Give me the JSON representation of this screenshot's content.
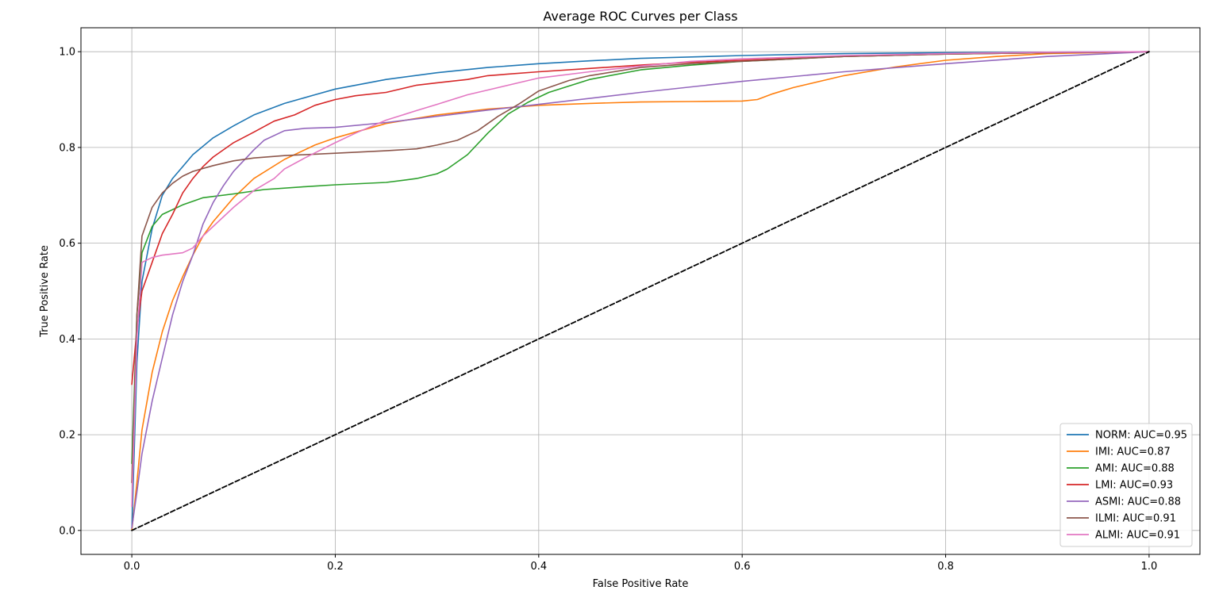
{
  "chart_data": {
    "type": "line",
    "title": "Average ROC Curves per Class",
    "xlabel": "False Positive Rate",
    "ylabel": "True Positive Rate",
    "xlim": [
      -0.05,
      1.05
    ],
    "ylim": [
      -0.05,
      1.05
    ],
    "xticks": [
      0.0,
      0.2,
      0.4,
      0.6,
      0.8,
      1.0
    ],
    "yticks": [
      0.0,
      0.2,
      0.4,
      0.6,
      0.8,
      1.0
    ],
    "xtick_labels": [
      "0.0",
      "0.2",
      "0.4",
      "0.6",
      "0.8",
      "1.0"
    ],
    "ytick_labels": [
      "0.0",
      "0.2",
      "0.4",
      "0.6",
      "0.8",
      "1.0"
    ],
    "grid": true,
    "legend_position": "lower-right",
    "series": [
      {
        "name": "NORM: AUC=0.95",
        "color": "#1f77b4",
        "points": [
          [
            0,
            0
          ],
          [
            0.005,
            0.35
          ],
          [
            0.01,
            0.52
          ],
          [
            0.02,
            0.63
          ],
          [
            0.03,
            0.7
          ],
          [
            0.04,
            0.735
          ],
          [
            0.05,
            0.76
          ],
          [
            0.06,
            0.785
          ],
          [
            0.08,
            0.82
          ],
          [
            0.1,
            0.845
          ],
          [
            0.12,
            0.868
          ],
          [
            0.15,
            0.892
          ],
          [
            0.18,
            0.91
          ],
          [
            0.2,
            0.922
          ],
          [
            0.25,
            0.942
          ],
          [
            0.3,
            0.956
          ],
          [
            0.35,
            0.967
          ],
          [
            0.4,
            0.975
          ],
          [
            0.45,
            0.981
          ],
          [
            0.5,
            0.986
          ],
          [
            0.6,
            0.992
          ],
          [
            0.7,
            0.996
          ],
          [
            0.8,
            0.998
          ],
          [
            0.9,
            0.999
          ],
          [
            1.0,
            1.0
          ]
        ]
      },
      {
        "name": "IMI: AUC=0.87",
        "color": "#ff7f0e",
        "points": [
          [
            0,
            0
          ],
          [
            0.005,
            0.1
          ],
          [
            0.01,
            0.21
          ],
          [
            0.02,
            0.33
          ],
          [
            0.03,
            0.415
          ],
          [
            0.04,
            0.48
          ],
          [
            0.05,
            0.53
          ],
          [
            0.06,
            0.575
          ],
          [
            0.07,
            0.615
          ],
          [
            0.08,
            0.645
          ],
          [
            0.1,
            0.695
          ],
          [
            0.12,
            0.735
          ],
          [
            0.15,
            0.775
          ],
          [
            0.18,
            0.805
          ],
          [
            0.2,
            0.82
          ],
          [
            0.25,
            0.85
          ],
          [
            0.3,
            0.868
          ],
          [
            0.35,
            0.88
          ],
          [
            0.4,
            0.888
          ],
          [
            0.45,
            0.892
          ],
          [
            0.5,
            0.895
          ],
          [
            0.55,
            0.896
          ],
          [
            0.6,
            0.897
          ],
          [
            0.615,
            0.9
          ],
          [
            0.63,
            0.912
          ],
          [
            0.65,
            0.925
          ],
          [
            0.7,
            0.95
          ],
          [
            0.75,
            0.968
          ],
          [
            0.8,
            0.982
          ],
          [
            0.85,
            0.99
          ],
          [
            0.9,
            0.996
          ],
          [
            1.0,
            1.0
          ]
        ]
      },
      {
        "name": "AMI: AUC=0.88",
        "color": "#2ca02c",
        "points": [
          [
            0,
            0.14
          ],
          [
            0.005,
            0.45
          ],
          [
            0.01,
            0.58
          ],
          [
            0.02,
            0.635
          ],
          [
            0.03,
            0.66
          ],
          [
            0.05,
            0.68
          ],
          [
            0.07,
            0.695
          ],
          [
            0.1,
            0.703
          ],
          [
            0.13,
            0.712
          ],
          [
            0.17,
            0.718
          ],
          [
            0.2,
            0.722
          ],
          [
            0.25,
            0.727
          ],
          [
            0.28,
            0.735
          ],
          [
            0.3,
            0.745
          ],
          [
            0.31,
            0.755
          ],
          [
            0.33,
            0.785
          ],
          [
            0.35,
            0.83
          ],
          [
            0.37,
            0.87
          ],
          [
            0.39,
            0.895
          ],
          [
            0.41,
            0.915
          ],
          [
            0.45,
            0.942
          ],
          [
            0.5,
            0.962
          ],
          [
            0.55,
            0.972
          ],
          [
            0.6,
            0.98
          ],
          [
            0.7,
            0.99
          ],
          [
            0.8,
            0.995
          ],
          [
            0.9,
            0.998
          ],
          [
            1.0,
            1.0
          ]
        ]
      },
      {
        "name": "LMI: AUC=0.93",
        "color": "#d62728",
        "points": [
          [
            0,
            0.305
          ],
          [
            0.005,
            0.42
          ],
          [
            0.01,
            0.5
          ],
          [
            0.02,
            0.56
          ],
          [
            0.03,
            0.62
          ],
          [
            0.04,
            0.66
          ],
          [
            0.05,
            0.705
          ],
          [
            0.06,
            0.735
          ],
          [
            0.07,
            0.76
          ],
          [
            0.08,
            0.78
          ],
          [
            0.1,
            0.81
          ],
          [
            0.12,
            0.832
          ],
          [
            0.14,
            0.855
          ],
          [
            0.16,
            0.868
          ],
          [
            0.18,
            0.888
          ],
          [
            0.2,
            0.9
          ],
          [
            0.22,
            0.908
          ],
          [
            0.25,
            0.915
          ],
          [
            0.28,
            0.93
          ],
          [
            0.3,
            0.935
          ],
          [
            0.33,
            0.942
          ],
          [
            0.35,
            0.95
          ],
          [
            0.4,
            0.958
          ],
          [
            0.45,
            0.965
          ],
          [
            0.5,
            0.972
          ],
          [
            0.55,
            0.978
          ],
          [
            0.6,
            0.982
          ],
          [
            0.7,
            0.99
          ],
          [
            0.8,
            0.995
          ],
          [
            0.9,
            0.998
          ],
          [
            1.0,
            1.0
          ]
        ]
      },
      {
        "name": "ASMI: AUC=0.88",
        "color": "#9467bd",
        "points": [
          [
            0,
            0.005
          ],
          [
            0.005,
            0.08
          ],
          [
            0.01,
            0.16
          ],
          [
            0.02,
            0.27
          ],
          [
            0.03,
            0.36
          ],
          [
            0.04,
            0.45
          ],
          [
            0.05,
            0.52
          ],
          [
            0.06,
            0.575
          ],
          [
            0.07,
            0.64
          ],
          [
            0.08,
            0.685
          ],
          [
            0.09,
            0.72
          ],
          [
            0.1,
            0.75
          ],
          [
            0.12,
            0.795
          ],
          [
            0.13,
            0.815
          ],
          [
            0.15,
            0.835
          ],
          [
            0.17,
            0.84
          ],
          [
            0.2,
            0.842
          ],
          [
            0.25,
            0.852
          ],
          [
            0.3,
            0.865
          ],
          [
            0.35,
            0.878
          ],
          [
            0.4,
            0.89
          ],
          [
            0.5,
            0.915
          ],
          [
            0.6,
            0.938
          ],
          [
            0.7,
            0.958
          ],
          [
            0.8,
            0.975
          ],
          [
            0.9,
            0.99
          ],
          [
            1.0,
            1.0
          ]
        ]
      },
      {
        "name": "ILMI: AUC=0.91",
        "color": "#8c564b",
        "points": [
          [
            0,
            0.1
          ],
          [
            0.005,
            0.45
          ],
          [
            0.01,
            0.615
          ],
          [
            0.02,
            0.675
          ],
          [
            0.03,
            0.705
          ],
          [
            0.04,
            0.725
          ],
          [
            0.05,
            0.74
          ],
          [
            0.06,
            0.75
          ],
          [
            0.08,
            0.762
          ],
          [
            0.1,
            0.772
          ],
          [
            0.12,
            0.778
          ],
          [
            0.15,
            0.783
          ],
          [
            0.2,
            0.788
          ],
          [
            0.25,
            0.793
          ],
          [
            0.28,
            0.797
          ],
          [
            0.3,
            0.805
          ],
          [
            0.32,
            0.815
          ],
          [
            0.34,
            0.835
          ],
          [
            0.36,
            0.865
          ],
          [
            0.38,
            0.89
          ],
          [
            0.4,
            0.918
          ],
          [
            0.43,
            0.94
          ],
          [
            0.45,
            0.95
          ],
          [
            0.5,
            0.967
          ],
          [
            0.55,
            0.975
          ],
          [
            0.6,
            0.98
          ],
          [
            0.7,
            0.99
          ],
          [
            0.8,
            0.995
          ],
          [
            0.9,
            0.998
          ],
          [
            1.0,
            1.0
          ]
        ]
      },
      {
        "name": "ALMI: AUC=0.91",
        "color": "#e377c2",
        "points": [
          [
            0,
            0.05
          ],
          [
            0.005,
            0.4
          ],
          [
            0.01,
            0.56
          ],
          [
            0.02,
            0.57
          ],
          [
            0.03,
            0.575
          ],
          [
            0.05,
            0.58
          ],
          [
            0.06,
            0.59
          ],
          [
            0.07,
            0.615
          ],
          [
            0.08,
            0.635
          ],
          [
            0.1,
            0.675
          ],
          [
            0.12,
            0.71
          ],
          [
            0.14,
            0.735
          ],
          [
            0.15,
            0.755
          ],
          [
            0.17,
            0.778
          ],
          [
            0.2,
            0.81
          ],
          [
            0.22,
            0.83
          ],
          [
            0.25,
            0.857
          ],
          [
            0.28,
            0.877
          ],
          [
            0.3,
            0.89
          ],
          [
            0.33,
            0.91
          ],
          [
            0.35,
            0.92
          ],
          [
            0.38,
            0.935
          ],
          [
            0.4,
            0.945
          ],
          [
            0.45,
            0.958
          ],
          [
            0.5,
            0.97
          ],
          [
            0.55,
            0.98
          ],
          [
            0.6,
            0.985
          ],
          [
            0.7,
            0.992
          ],
          [
            0.8,
            0.996
          ],
          [
            0.9,
            0.999
          ],
          [
            1.0,
            1.0
          ]
        ]
      },
      {
        "name": "",
        "color": "#000000",
        "dashed": true,
        "is_reference": true,
        "points": [
          [
            0,
            0
          ],
          [
            1,
            1
          ]
        ]
      }
    ]
  }
}
